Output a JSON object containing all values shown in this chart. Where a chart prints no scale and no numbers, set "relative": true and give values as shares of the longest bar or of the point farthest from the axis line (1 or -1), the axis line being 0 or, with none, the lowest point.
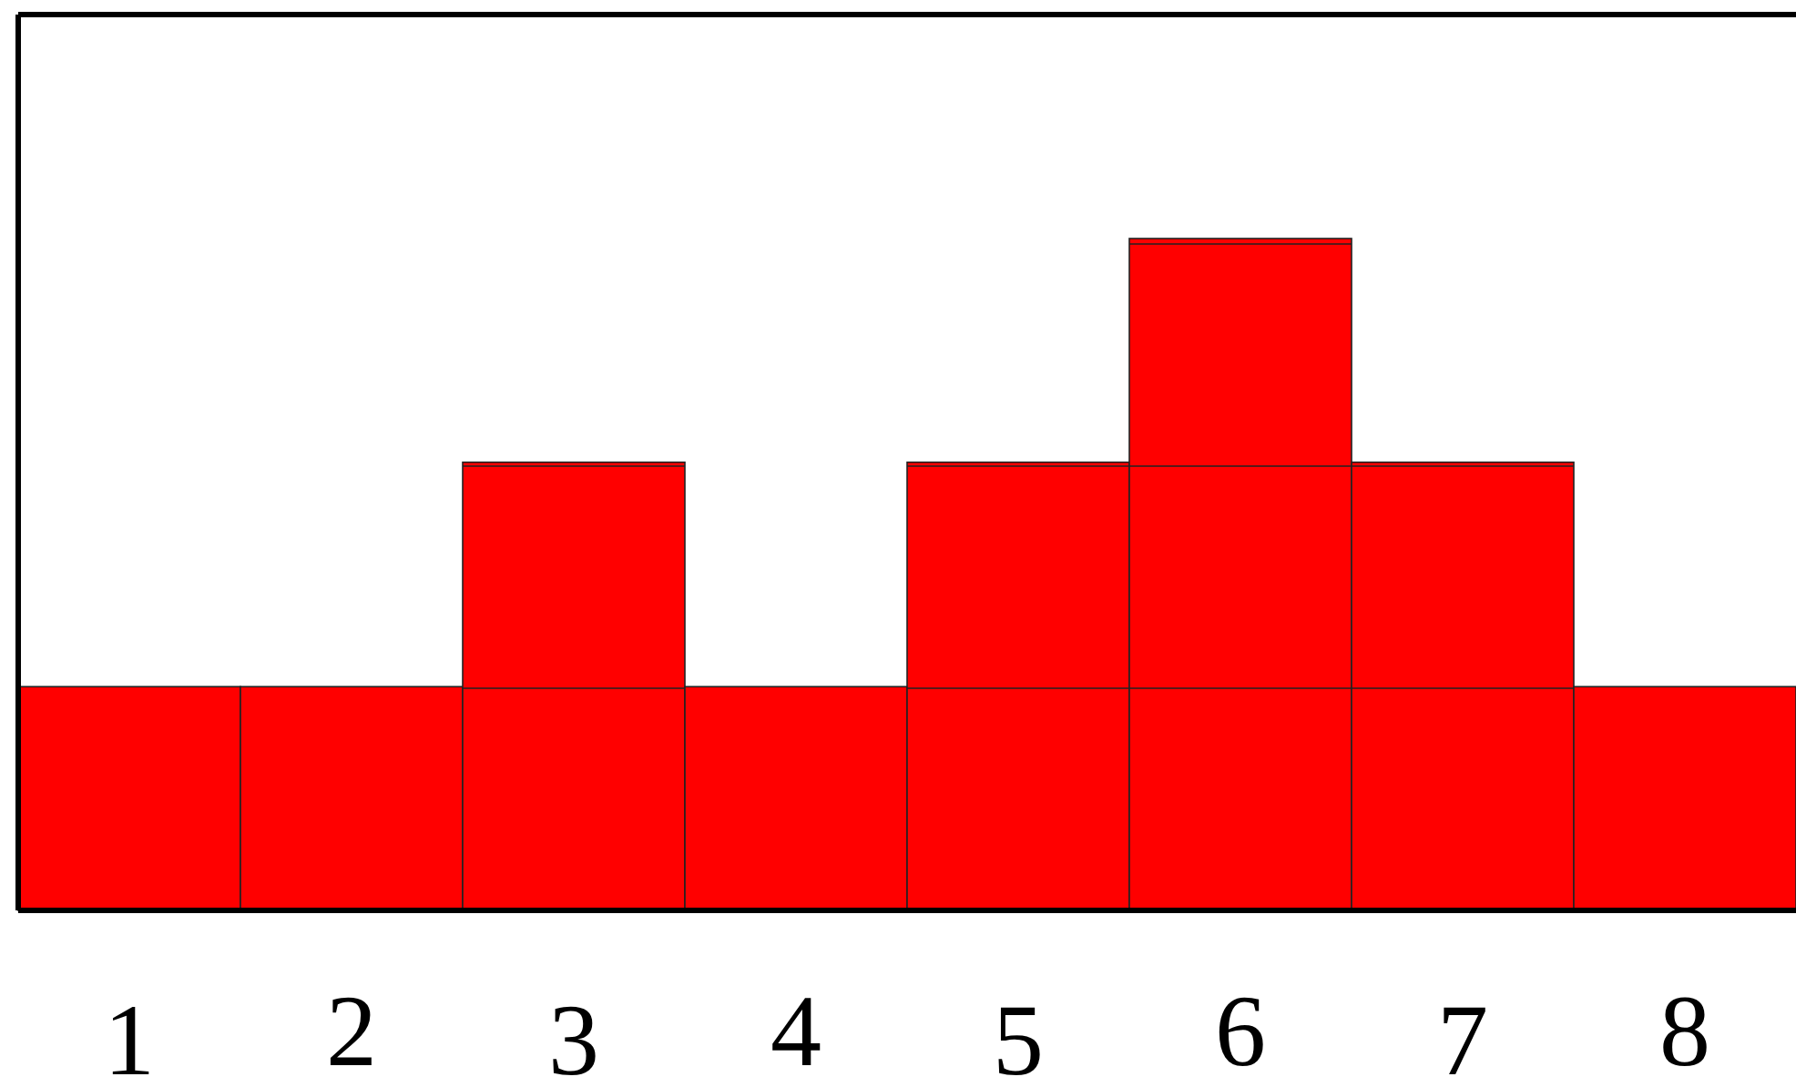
{
  "chart_data": {
    "type": "bar",
    "relative": true,
    "categories": [
      "1",
      "2",
      "3",
      "4",
      "5",
      "6",
      "7",
      "8"
    ],
    "series": [
      {
        "color": "#ff0000",
        "values": [
          0.333,
          0.333,
          0.667,
          0.333,
          0.667,
          1,
          0.667,
          0.333
        ]
      }
    ]
  }
}
